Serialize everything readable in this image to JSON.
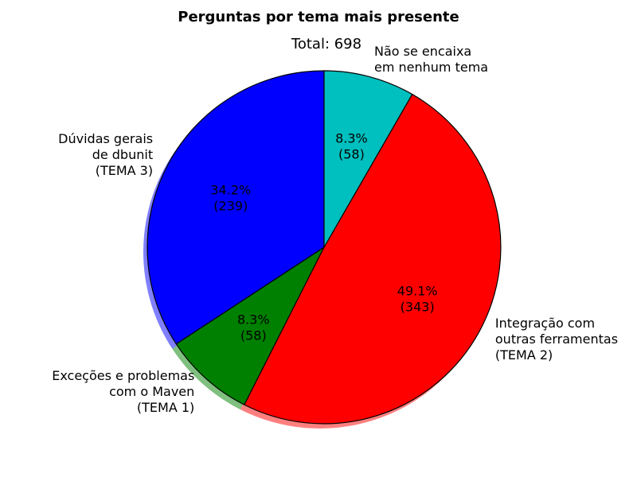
{
  "chart_data": {
    "type": "pie",
    "title": "Perguntas por tema mais presente",
    "subtitle": "Total: 698",
    "total": 698,
    "start_angle_deg": 90,
    "direction": "counterclockwise",
    "shadow": true,
    "slices": [
      {
        "label_lines": [
          "Dúvidas gerais",
          "de dbunit",
          "(TEMA 3)"
        ],
        "value": 239,
        "percent": "34.2%",
        "count": "(239)",
        "color": "#0000ff"
      },
      {
        "label_lines": [
          "Exceções e problemas",
          "com o Maven",
          "(TEMA 1)"
        ],
        "value": 58,
        "percent": "8.3%",
        "count": "(58)",
        "color": "#008000"
      },
      {
        "label_lines": [
          "Integração com",
          "outras ferramentas",
          "(TEMA 2)"
        ],
        "value": 343,
        "percent": "49.1%",
        "count": "(343)",
        "color": "#ff0000"
      },
      {
        "label_lines": [
          "Não se encaixa",
          "em nenhum tema"
        ],
        "value": 58,
        "percent": "8.3%",
        "count": "(58)",
        "color": "#00bfbf"
      }
    ]
  }
}
